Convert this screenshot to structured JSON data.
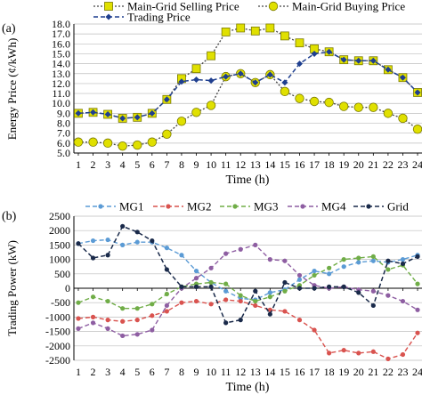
{
  "chart_data": [
    {
      "type": "line",
      "panel_label": "(a)",
      "xlabel": "Time (h)",
      "ylabel": "Energy Price (¢/kWh)",
      "x": [
        1,
        2,
        3,
        4,
        5,
        6,
        7,
        8,
        9,
        10,
        11,
        12,
        13,
        14,
        15,
        16,
        17,
        18,
        19,
        20,
        21,
        22,
        23,
        24
      ],
      "ylim": [
        5.0,
        18.0
      ],
      "yticks": [
        5.0,
        6.0,
        7.0,
        8.0,
        9.0,
        10.0,
        11.0,
        12.0,
        13.0,
        14.0,
        15.0,
        16.0,
        17.0,
        18.0
      ],
      "grid": true,
      "legend_position": "top",
      "series": [
        {
          "name": "Main-Grid Selling Price",
          "color": "#e0e000",
          "marker": "square",
          "values": [
            9.0,
            9.1,
            8.9,
            8.5,
            8.6,
            9.0,
            10.4,
            12.5,
            13.5,
            14.8,
            17.2,
            17.6,
            17.3,
            17.6,
            16.8,
            16.1,
            15.5,
            15.2,
            14.4,
            14.3,
            14.3,
            13.4,
            12.6,
            11.1
          ]
        },
        {
          "name": "Main-Grid Buying Price",
          "color": "#e0e000",
          "marker": "circle",
          "values": [
            6.1,
            6.1,
            6.0,
            5.7,
            5.8,
            6.1,
            6.9,
            8.2,
            9.1,
            9.8,
            12.7,
            13.0,
            12.1,
            12.9,
            11.2,
            10.5,
            10.2,
            10.1,
            9.7,
            9.6,
            9.6,
            9.0,
            8.5,
            7.4
          ]
        },
        {
          "name": "Trading Price",
          "color": "#1f3f8f",
          "marker": "diamond",
          "values": [
            9.0,
            9.1,
            8.9,
            8.5,
            8.6,
            9.0,
            10.4,
            12.2,
            12.4,
            12.3,
            12.7,
            13.0,
            12.1,
            12.9,
            12.1,
            14.0,
            15.0,
            15.2,
            14.4,
            14.3,
            14.3,
            13.4,
            12.6,
            11.1
          ]
        }
      ]
    },
    {
      "type": "line",
      "panel_label": "(b)",
      "xlabel": "Time (h)",
      "ylabel": "Trading Power (kW)",
      "x": [
        1,
        2,
        3,
        4,
        5,
        6,
        7,
        8,
        9,
        10,
        11,
        12,
        13,
        14,
        15,
        16,
        17,
        18,
        19,
        20,
        21,
        22,
        23,
        24
      ],
      "ylim": [
        -2500,
        2500
      ],
      "yticks": [
        -2500,
        -2000,
        -1500,
        -1000,
        -500,
        0,
        500,
        1000,
        1500,
        2000,
        2500
      ],
      "grid": true,
      "legend_position": "top",
      "series": [
        {
          "name": "MG1",
          "color": "#5b9bd5",
          "values": [
            1550,
            1650,
            1680,
            1500,
            1600,
            1600,
            1400,
            1150,
            600,
            200,
            -100,
            -350,
            -400,
            -150,
            -50,
            300,
            600,
            500,
            750,
            900,
            950,
            900,
            1000,
            1150
          ]
        },
        {
          "name": "MG2",
          "color": "#d9534f",
          "values": [
            -1050,
            -1000,
            -1100,
            -1150,
            -1100,
            -950,
            -800,
            -500,
            -450,
            -550,
            -400,
            -450,
            -600,
            -750,
            -800,
            -1100,
            -1450,
            -2250,
            -2150,
            -2250,
            -2200,
            -2450,
            -2300,
            -1550
          ]
        },
        {
          "name": "MG3",
          "color": "#70ad47",
          "values": [
            -500,
            -300,
            -450,
            -700,
            -700,
            -550,
            -200,
            50,
            150,
            200,
            150,
            -250,
            -450,
            -300,
            -100,
            100,
            450,
            700,
            1000,
            1050,
            1100,
            650,
            800,
            150
          ]
        },
        {
          "name": "MG4",
          "color": "#8e5ea2",
          "values": [
            -1400,
            -1200,
            -1400,
            -1650,
            -1600,
            -1450,
            -600,
            0,
            350,
            700,
            1200,
            1350,
            1500,
            1000,
            950,
            450,
            100,
            0,
            50,
            -50,
            -100,
            -250,
            -450,
            -750
          ]
        },
        {
          "name": "Grid",
          "color": "#1a2a4a",
          "values": [
            1550,
            1050,
            1150,
            2150,
            1950,
            1650,
            650,
            50,
            50,
            50,
            -1200,
            -1100,
            -100,
            -900,
            200,
            0,
            0,
            50,
            50,
            -150,
            -600,
            950,
            850,
            1100
          ]
        }
      ]
    }
  ]
}
